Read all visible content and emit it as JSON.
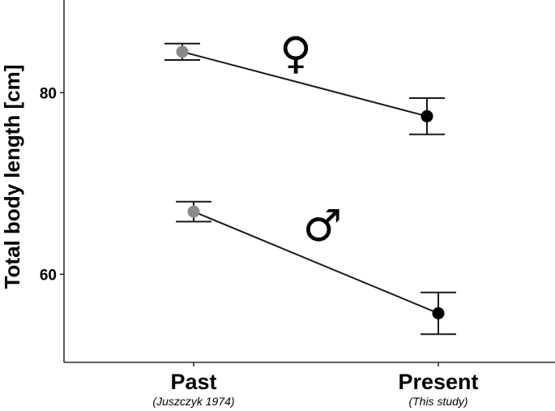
{
  "chart_data": {
    "type": "scatter",
    "ylabel": "Total body length [cm]",
    "xlabel": "",
    "categories": [
      {
        "label": "Past",
        "sublabel": "(Juszczyk 1974)"
      },
      {
        "label": "Present",
        "sublabel": "(This study)"
      }
    ],
    "yticks": [
      60,
      80
    ],
    "ylim": [
      50.3,
      90.2
    ],
    "grid": false,
    "series": [
      {
        "symbol": "♀",
        "values": [
          84.5,
          77.4
        ],
        "errors": [
          0.9,
          2.0
        ],
        "colors": [
          "#8a8a8a",
          "#000000"
        ]
      },
      {
        "symbol": "♂",
        "values": [
          66.9,
          55.7
        ],
        "errors": [
          1.1,
          2.3
        ],
        "colors": [
          "#8a8a8a",
          "#000000"
        ]
      }
    ]
  }
}
